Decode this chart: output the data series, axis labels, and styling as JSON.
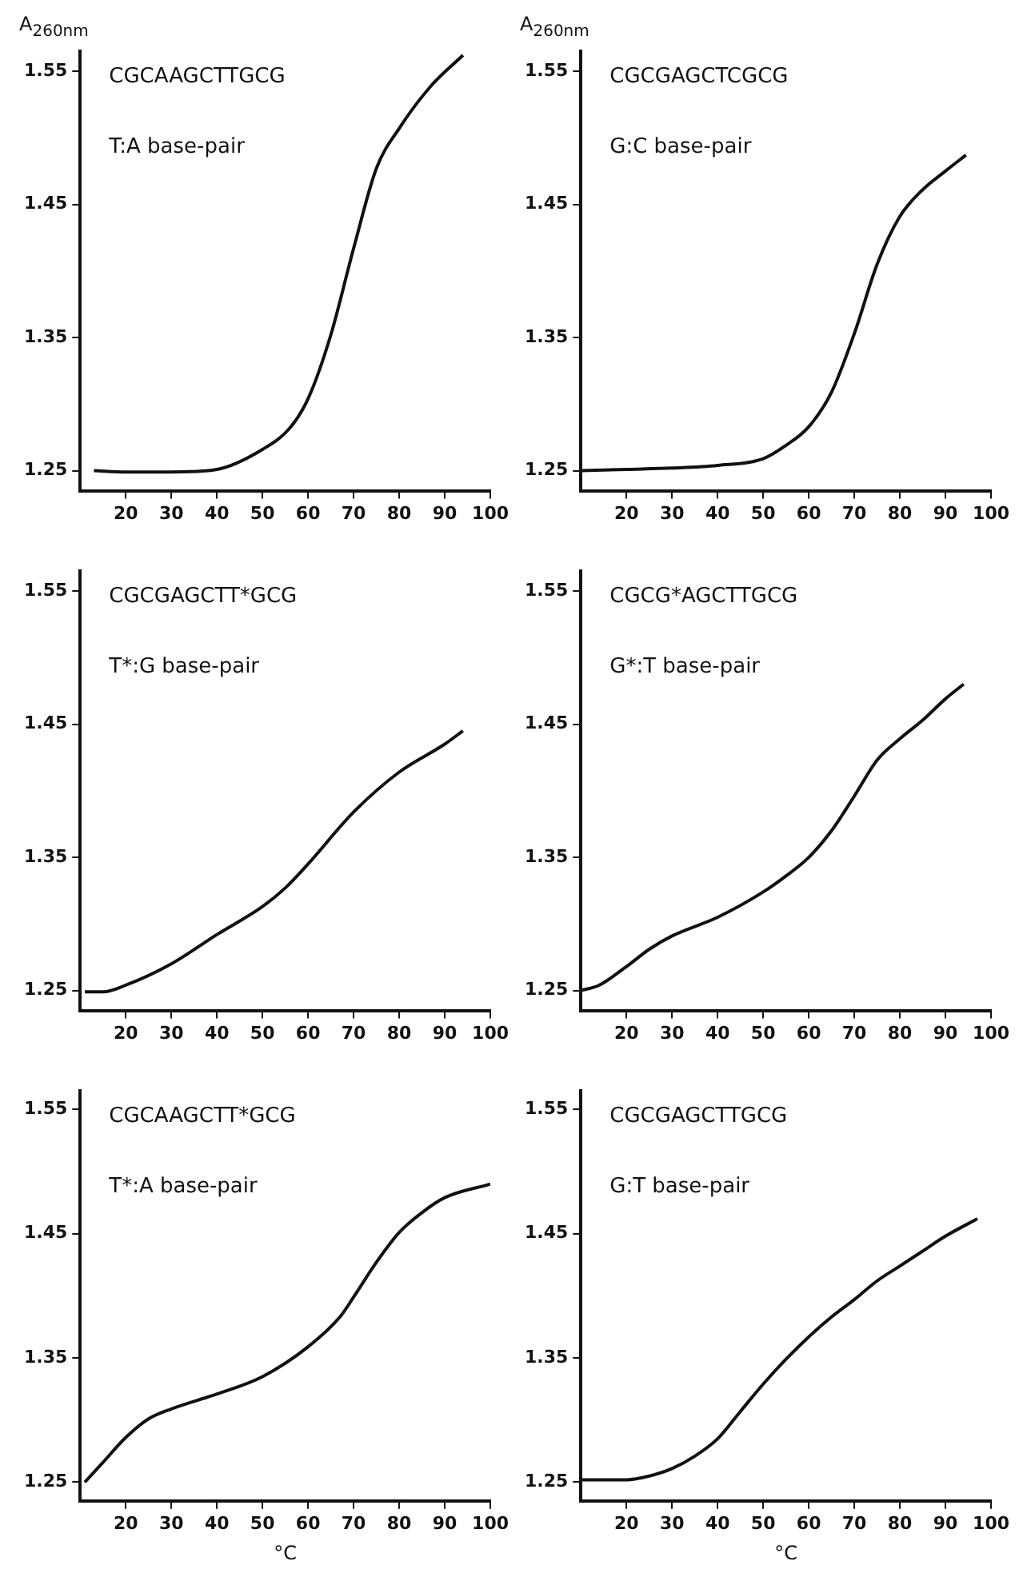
{
  "chart_data": [
    {
      "type": "line",
      "ylabel": "A$_{260nm}$",
      "annotations": [
        "CGCAAGCTTGCG",
        "T:A base-pair"
      ],
      "xlim": [
        10,
        100
      ],
      "xticks": [
        20,
        30,
        40,
        50,
        60,
        70,
        80,
        90,
        100
      ],
      "ylim": [
        1.235,
        1.565
      ],
      "yticks": [
        1.25,
        1.35,
        1.45,
        1.55
      ],
      "series": [
        {
          "color": "#111111",
          "x": [
            13,
            20,
            30,
            40,
            50,
            56,
            60,
            65,
            70,
            75,
            80,
            87,
            94
          ],
          "values": [
            1.25,
            1.249,
            1.249,
            1.251,
            1.266,
            1.282,
            1.304,
            1.352,
            1.417,
            1.477,
            1.507,
            1.539,
            1.562
          ]
        }
      ]
    },
    {
      "type": "line",
      "ylabel": "A$_{260nm}$",
      "annotations": [
        "CGCGAGCTCGCG",
        "G:C base-pair"
      ],
      "xlim": [
        10,
        100
      ],
      "xticks": [
        20,
        30,
        40,
        50,
        60,
        70,
        80,
        90,
        100
      ],
      "ylim": [
        1.235,
        1.565
      ],
      "yticks": [
        1.25,
        1.35,
        1.45,
        1.55
      ],
      "series": [
        {
          "color": "#111111",
          "x": [
            10,
            20,
            30,
            40,
            50,
            55,
            60,
            65,
            70,
            75,
            80,
            85,
            90,
            94.5
          ],
          "values": [
            1.25,
            1.251,
            1.252,
            1.254,
            1.259,
            1.269,
            1.283,
            1.309,
            1.353,
            1.405,
            1.441,
            1.461,
            1.475,
            1.487
          ]
        }
      ]
    },
    {
      "type": "line",
      "annotations": [
        "CGCGAGCTT*GCG",
        "T*:G base-pair"
      ],
      "xlim": [
        10,
        100
      ],
      "xticks": [
        20,
        30,
        40,
        50,
        60,
        70,
        80,
        90,
        100
      ],
      "ylim": [
        1.235,
        1.565
      ],
      "yticks": [
        1.25,
        1.35,
        1.45,
        1.55
      ],
      "series": [
        {
          "color": "#111111",
          "x": [
            11,
            15,
            20,
            30,
            40,
            50,
            55,
            60,
            70,
            80,
            90,
            94
          ],
          "values": [
            1.249,
            1.249,
            1.254,
            1.27,
            1.292,
            1.313,
            1.327,
            1.345,
            1.384,
            1.414,
            1.435,
            1.445
          ]
        }
      ]
    },
    {
      "type": "line",
      "annotations": [
        "CGCG*AGCTTGCG",
        "G*:T base-pair"
      ],
      "xlim": [
        10,
        100
      ],
      "xticks": [
        20,
        30,
        40,
        50,
        60,
        70,
        80,
        90,
        100
      ],
      "ylim": [
        1.235,
        1.565
      ],
      "yticks": [
        1.25,
        1.35,
        1.45,
        1.55
      ],
      "series": [
        {
          "color": "#111111",
          "x": [
            10,
            14,
            20,
            25,
            30,
            40,
            50,
            55,
            60,
            65,
            70,
            75,
            80,
            85,
            90,
            94
          ],
          "values": [
            1.25,
            1.254,
            1.268,
            1.281,
            1.291,
            1.305,
            1.324,
            1.336,
            1.35,
            1.37,
            1.396,
            1.423,
            1.439,
            1.453,
            1.469,
            1.48
          ]
        }
      ]
    },
    {
      "type": "line",
      "xlabel": "°C",
      "annotations": [
        "CGCAAGCTT*GCG",
        "T*:A base-pair"
      ],
      "xlim": [
        10,
        100
      ],
      "xticks": [
        20,
        30,
        40,
        50,
        60,
        70,
        80,
        90,
        100
      ],
      "ylim": [
        1.235,
        1.565
      ],
      "yticks": [
        1.25,
        1.35,
        1.45,
        1.55
      ],
      "series": [
        {
          "color": "#111111",
          "x": [
            11,
            15,
            20,
            25,
            30,
            40,
            50,
            60,
            67,
            70,
            75,
            80,
            85,
            90,
            100
          ],
          "values": [
            1.25,
            1.266,
            1.286,
            1.301,
            1.309,
            1.321,
            1.335,
            1.359,
            1.383,
            1.399,
            1.427,
            1.451,
            1.467,
            1.479,
            1.49
          ]
        }
      ]
    },
    {
      "type": "line",
      "xlabel": "°C",
      "annotations": [
        "CGCGAGCTTGCG",
        "G:T base-pair"
      ],
      "xlim": [
        10,
        100
      ],
      "xticks": [
        20,
        30,
        40,
        50,
        60,
        70,
        80,
        90,
        100
      ],
      "ylim": [
        1.235,
        1.565
      ],
      "yticks": [
        1.25,
        1.35,
        1.45,
        1.55
      ],
      "series": [
        {
          "color": "#111111",
          "x": [
            10,
            20,
            25,
            30,
            35,
            40,
            45,
            50,
            55,
            60,
            65,
            70,
            75,
            80,
            85,
            90,
            97
          ],
          "values": [
            1.252,
            1.252,
            1.255,
            1.261,
            1.271,
            1.285,
            1.307,
            1.329,
            1.349,
            1.367,
            1.383,
            1.397,
            1.412,
            1.424,
            1.436,
            1.448,
            1.462
          ]
        }
      ]
    }
  ]
}
